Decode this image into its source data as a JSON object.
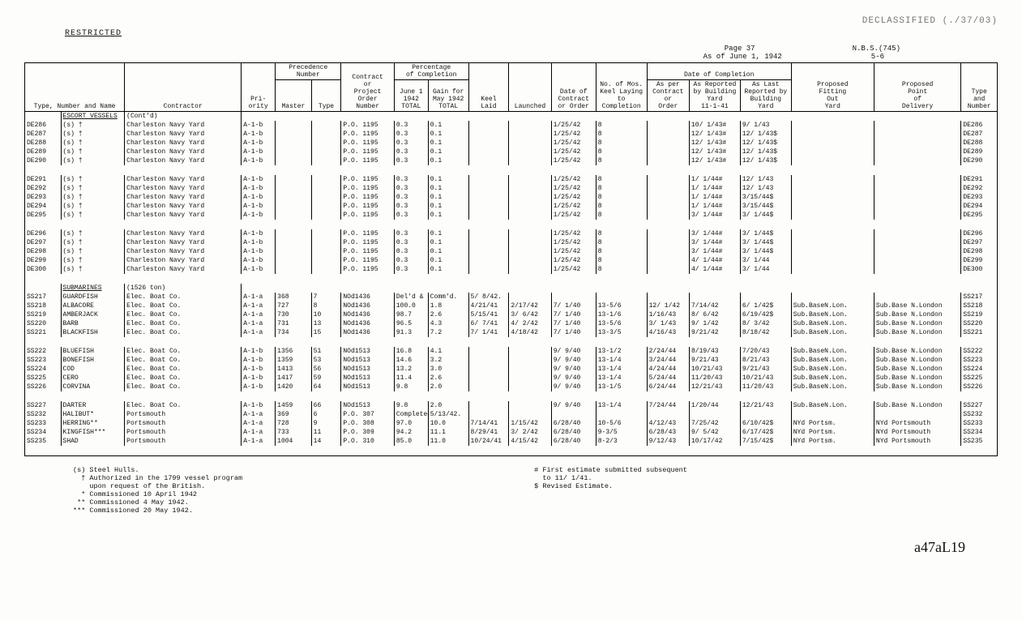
{
  "stamp": "DECLASSIFIED (./37/03)",
  "restricted": "RESTRICTED",
  "page": "Page 37",
  "doc": "N.B.S.(745)",
  "asof": "As of June 1, 1942",
  "ref": "5-6",
  "headers": {
    "type_no_name": "Type, Number and Name",
    "contractor": "Contractor",
    "priority": "Pri-\nority",
    "prec": "Precedence\nNumber",
    "master": "Master",
    "type": "Type",
    "contract_or": "Contract\nor\nProject\nOrder\nNumber",
    "pct": "Percentage\nof Completion",
    "june1": "June 1\n1942\nTOTAL",
    "gain": "Gain for\nMay 1942\nTOTAL",
    "keel": "Keel\nLaid",
    "launched": "Launched",
    "date_con": "Date of\nContract\nor Order",
    "mos_keel": "No. of Mos.\nKeel Laying\nto\nCompletion",
    "date_comp": "Date of Completion",
    "as_per": "As per\nContract\nor\nOrder",
    "as_rep": "As Reported\nby Building\nYard\n11-1-41",
    "as_last": "As Last\nReported by\nBuilding\nYard",
    "fitting": "Proposed\nFitting\nOut\nYard",
    "delivery": "Proposed\nPoint\nof\nDelivery",
    "type_num": "Type\nand\nNumber"
  },
  "sections": {
    "escort": "ESCORT VESSELS",
    "escort_cont": "(Cont'd)",
    "subs": "SUBMARINES",
    "subs_ton": "(1526 ton)"
  },
  "escort_rows": [
    {
      "id": "DE286",
      "n": "(s)",
      "m": "†",
      "con": "Charleston Navy Yard",
      "pri": "A-1-b",
      "po": "P.O. 1195",
      "j": "0.3",
      "g": "0.1",
      "doc": "1/25/42",
      "mos": "8",
      "arb": "10/ 1/43#",
      "alr": "9/ 1/43",
      "id2": "DE286"
    },
    {
      "id": "DE287",
      "n": "(s)",
      "m": "†",
      "con": "Charleston Navy Yard",
      "pri": "A-1-b",
      "po": "P.O. 1195",
      "j": "0.3",
      "g": "0.1",
      "doc": "1/25/42",
      "mos": "8",
      "arb": "12/ 1/43#",
      "alr": "12/ 1/43$",
      "id2": "DE287"
    },
    {
      "id": "DE288",
      "n": "(s)",
      "m": "†",
      "con": "Charleston Navy Yard",
      "pri": "A-1-b",
      "po": "P.O. 1195",
      "j": "0.3",
      "g": "0.1",
      "doc": "1/25/42",
      "mos": "8",
      "arb": "12/ 1/43#",
      "alr": "12/ 1/43$",
      "id2": "DE288"
    },
    {
      "id": "DE289",
      "n": "(s)",
      "m": "†",
      "con": "Charleston Navy Yard",
      "pri": "A-1-b",
      "po": "P.O. 1195",
      "j": "0.3",
      "g": "0.1",
      "doc": "1/25/42",
      "mos": "8",
      "arb": "12/ 1/43#",
      "alr": "12/ 1/43$",
      "id2": "DE289"
    },
    {
      "id": "DE290",
      "n": "(s)",
      "m": "†",
      "con": "Charleston Navy Yard",
      "pri": "A-1-b",
      "po": "P.O. 1195",
      "j": "0.3",
      "g": "0.1",
      "doc": "1/25/42",
      "mos": "8",
      "arb": "12/ 1/43#",
      "alr": "12/ 1/43$",
      "id2": "DE290"
    },
    {
      "spacer": true
    },
    {
      "id": "DE291",
      "n": "(s)",
      "m": "†",
      "con": "Charleston Navy Yard",
      "pri": "A-1-b",
      "po": "P.O. 1195",
      "j": "0.3",
      "g": "0.1",
      "doc": "1/25/42",
      "mos": "8",
      "arb": "1/ 1/44#",
      "alr": "12/ 1/43",
      "id2": "DE291"
    },
    {
      "id": "DE292",
      "n": "(s)",
      "m": "†",
      "con": "Charleston Navy Yard",
      "pri": "A-1-b",
      "po": "P.O. 1195",
      "j": "0.3",
      "g": "0.1",
      "doc": "1/25/42",
      "mos": "8",
      "arb": "1/ 1/44#",
      "alr": "12/ 1/43",
      "id2": "DE292"
    },
    {
      "id": "DE293",
      "n": "(s)",
      "m": "†",
      "con": "Charleston Navy Yard",
      "pri": "A-1-b",
      "po": "P.O. 1195",
      "j": "0.3",
      "g": "0.1",
      "doc": "1/25/42",
      "mos": "8",
      "arb": "1/ 1/44#",
      "alr": "3/15/44$",
      "id2": "DE293"
    },
    {
      "id": "DE294",
      "n": "(s)",
      "m": "†",
      "con": "Charleston Navy Yard",
      "pri": "A-1-b",
      "po": "P.O. 1195",
      "j": "0.3",
      "g": "0.1",
      "doc": "1/25/42",
      "mos": "8",
      "arb": "1/ 1/44#",
      "alr": "3/15/44$",
      "id2": "DE294"
    },
    {
      "id": "DE295",
      "n": "(s)",
      "m": "†",
      "con": "Charleston Navy Yard",
      "pri": "A-1-b",
      "po": "P.O. 1195",
      "j": "0.3",
      "g": "0.1",
      "doc": "1/25/42",
      "mos": "8",
      "arb": "3/ 1/44#",
      "alr": "3/ 1/44$",
      "id2": "DE295"
    },
    {
      "spacer": true
    },
    {
      "id": "DE296",
      "n": "(s)",
      "m": "†",
      "con": "Charleston Navy Yard",
      "pri": "A-1-b",
      "po": "P.O. 1195",
      "j": "0.3",
      "g": "0.1",
      "doc": "1/25/42",
      "mos": "8",
      "arb": "3/ 1/44#",
      "alr": "3/ 1/44$",
      "id2": "DE296"
    },
    {
      "id": "DE297",
      "n": "(s)",
      "m": "†",
      "con": "Charleston Navy Yard",
      "pri": "A-1-b",
      "po": "P.O. 1195",
      "j": "0.3",
      "g": "0.1",
      "doc": "1/25/42",
      "mos": "8",
      "arb": "3/ 1/44#",
      "alr": "3/ 1/44$",
      "id2": "DE297"
    },
    {
      "id": "DE298",
      "n": "(s)",
      "m": "†",
      "con": "Charleston Navy Yard",
      "pri": "A-1-b",
      "po": "P.O. 1195",
      "j": "0.3",
      "g": "0.1",
      "doc": "1/25/42",
      "mos": "8",
      "arb": "3/ 1/44#",
      "alr": "3/ 1/44$",
      "id2": "DE298"
    },
    {
      "id": "DE299",
      "n": "(s)",
      "m": "†",
      "con": "Charleston Navy Yard",
      "pri": "A-1-b",
      "po": "P.O. 1195",
      "j": "0.3",
      "g": "0.1",
      "doc": "1/25/42",
      "mos": "8",
      "arb": "4/ 1/44#",
      "alr": "3/ 1/44",
      "id2": "DE299"
    },
    {
      "id": "DE300",
      "n": "(s)",
      "m": "†",
      "con": "Charleston Navy Yard",
      "pri": "A-1-b",
      "po": "P.O. 1195",
      "j": "0.3",
      "g": "0.1",
      "doc": "1/25/42",
      "mos": "8",
      "arb": "4/ 1/44#",
      "alr": "3/ 1/44",
      "id2": "DE300"
    }
  ],
  "sub_rows": [
    {
      "id": "SS217",
      "n": "GUARDFISH",
      "con": "Elec. Boat Co.",
      "pri": "A-1-a",
      "mas": "368",
      "typ": "7",
      "po": "NOd1436",
      "j": "Del'd &",
      "g": "Comm'd.",
      "kl": "5/ 8/42.",
      "lau": "",
      "doc": "",
      "mos": "",
      "apc": "",
      "arb": "",
      "alr": "",
      "fit": "",
      "del": "",
      "id2": "SS217"
    },
    {
      "id": "SS218",
      "n": "ALBACORE",
      "con": "Elec. Boat Co.",
      "pri": "A-1-a",
      "mas": "727",
      "typ": "8",
      "po": "NOd1436",
      "j": "100.0",
      "g": "1.8",
      "kl": "4/21/41",
      "lau": "2/17/42",
      "doc": "7/ 1/40",
      "mos": "13-5/6",
      "apc": "12/ 1/42",
      "arb": "7/14/42",
      "alr": "6/ 1/42$",
      "fit": "Sub.BaseN.Lon.",
      "del": "Sub.Base N.London",
      "id2": "SS218"
    },
    {
      "id": "SS219",
      "n": "AMBERJACK",
      "con": "Elec. Boat Co.",
      "pri": "A-1-a",
      "mas": "730",
      "typ": "10",
      "po": "NOd1436",
      "j": "98.7",
      "g": "2.6",
      "kl": "5/15/41",
      "lau": "3/ 6/42",
      "doc": "7/ 1/40",
      "mos": "13-1/6",
      "apc": "1/16/43",
      "arb": "8/ 6/42",
      "alr": "6/19/42$",
      "fit": "Sub.BaseN.Lon.",
      "del": "Sub.Base N.London",
      "id2": "SS219"
    },
    {
      "id": "SS220",
      "n": "BARB",
      "con": "Elec. Boat Co.",
      "pri": "A-1-a",
      "mas": "731",
      "typ": "13",
      "po": "NOd1436",
      "j": "96.5",
      "g": "4.3",
      "kl": "6/ 7/41",
      "lau": "4/ 2/42",
      "doc": "7/ 1/40",
      "mos": "13-5/6",
      "apc": "3/ 1/43",
      "arb": "9/ 1/42",
      "alr": "8/ 3/42",
      "fit": "Sub.BaseN.Lon.",
      "del": "Sub.Base N.London",
      "id2": "SS220"
    },
    {
      "id": "SS221",
      "n": "BLACKFISH",
      "con": "Elec. Boat Co.",
      "pri": "A-1-a",
      "mas": "734",
      "typ": "15",
      "po": "NOd1436",
      "j": "91.3",
      "g": "7.2",
      "kl": "7/ 1/41",
      "lau": "4/18/42",
      "doc": "7/ 1/40",
      "mos": "13-3/5",
      "apc": "4/16/43",
      "arb": "9/21/42",
      "alr": "8/18/42",
      "fit": "Sub.BaseN.Lon.",
      "del": "Sub.Base N.London",
      "id2": "SS221"
    },
    {
      "spacer": true
    },
    {
      "id": "SS222",
      "n": "BLUEFISH",
      "con": "Elec. Boat Co.",
      "pri": "A-1-b",
      "mas": "1356",
      "typ": "51",
      "po": "NOd1513",
      "j": "16.8",
      "g": "4.1",
      "kl": "",
      "lau": "",
      "doc": "9/ 9/40",
      "mos": "13-1/2",
      "apc": "2/24/44",
      "arb": "8/19/43",
      "alr": "7/20/43",
      "fit": "Sub.BaseN.Lon.",
      "del": "Sub.Base N.London",
      "id2": "SS222"
    },
    {
      "id": "SS223",
      "n": "BONEFISH",
      "con": "Elec. Boat Co.",
      "pri": "A-1-b",
      "mas": "1359",
      "typ": "53",
      "po": "NOd1513",
      "j": "14.6",
      "g": "3.2",
      "kl": "",
      "lau": "",
      "doc": "9/ 9/40",
      "mos": "13-1/4",
      "apc": "3/24/44",
      "arb": "9/21/43",
      "alr": "8/21/43",
      "fit": "Sub.BaseN.Lon.",
      "del": "Sub.Base N.London",
      "id2": "SS223"
    },
    {
      "id": "SS224",
      "n": "COD",
      "con": "Elec. Boat Co.",
      "pri": "A-1-b",
      "mas": "1413",
      "typ": "56",
      "po": "NOd1513",
      "j": "13.2",
      "g": "3.0",
      "kl": "",
      "lau": "",
      "doc": "9/ 9/40",
      "mos": "13-1/4",
      "apc": "4/24/44",
      "arb": "10/21/43",
      "alr": "9/21/43",
      "fit": "Sub.BaseN.Lon.",
      "del": "Sub.Base N.London",
      "id2": "SS224"
    },
    {
      "id": "SS225",
      "n": "CERO",
      "con": "Elec. Boat Co.",
      "pri": "A-1-b",
      "mas": "1417",
      "typ": "59",
      "po": "NOd1513",
      "j": "11.4",
      "g": "2.6",
      "kl": "",
      "lau": "",
      "doc": "9/ 9/40",
      "mos": "13-1/4",
      "apc": "5/24/44",
      "arb": "11/20/43",
      "alr": "10/21/43",
      "fit": "Sub.BaseN.Lon.",
      "del": "Sub.Base N.London",
      "id2": "SS225"
    },
    {
      "id": "SS226",
      "n": "CORVINA",
      "con": "Elec. Boat Co.",
      "pri": "A-1-b",
      "mas": "1420",
      "typ": "64",
      "po": "NOd1513",
      "j": "9.8",
      "g": "2.0",
      "kl": "",
      "lau": "",
      "doc": "9/ 9/40",
      "mos": "13-1/5",
      "apc": "6/24/44",
      "arb": "12/21/43",
      "alr": "11/20/43",
      "fit": "Sub.BaseN.Lon.",
      "del": "Sub.Base N.London",
      "id2": "SS226"
    },
    {
      "spacer": true
    },
    {
      "id": "SS227",
      "n": "DARTER",
      "con": "Elec. Boat Co.",
      "pri": "A-1-b",
      "mas": "1459",
      "typ": "66",
      "po": "NOd1513",
      "j": "9.8",
      "g": "2.0",
      "kl": "",
      "lau": "",
      "doc": "9/ 9/40",
      "mos": "13-1/4",
      "apc": "7/24/44",
      "arb": "1/20/44",
      "alr": "12/21/43",
      "fit": "Sub.BaseN.Lon.",
      "del": "Sub.Base N.London",
      "id2": "SS227"
    },
    {
      "id": "SS232",
      "n": "HALIBUT*",
      "con": "Portsmouth",
      "pri": "A-1-a",
      "mas": "369",
      "typ": "6",
      "po": "P.O. 307",
      "j": "Completed",
      "g": "5/13/42.",
      "kl": "",
      "lau": "",
      "doc": "",
      "mos": "",
      "apc": "",
      "arb": "",
      "alr": "",
      "fit": "",
      "del": "",
      "id2": "SS232"
    },
    {
      "id": "SS233",
      "n": "HERRING**",
      "con": "Portsmouth",
      "pri": "A-1-a",
      "mas": "728",
      "typ": "9",
      "po": "P.O. 308",
      "j": "97.0",
      "g": "10.0",
      "kl": "7/14/41",
      "lau": "1/15/42",
      "doc": "6/28/40",
      "mos": "10-5/6",
      "apc": "4/12/43",
      "arb": "7/25/42",
      "alr": "6/10/42$",
      "fit": "NYd Portsm.",
      "del": "NYd Portsmouth",
      "id2": "SS233"
    },
    {
      "id": "SS234",
      "n": "KINGFISH***",
      "con": "Portsmouth",
      "pri": "A-1-a",
      "mas": "733",
      "typ": "11",
      "po": "P.O. 309",
      "j": "94.2",
      "g": "11.1",
      "kl": "8/29/41",
      "lau": "3/ 2/42",
      "doc": "6/28/40",
      "mos": "9-3/5",
      "apc": "6/28/43",
      "arb": "9/ 5/42",
      "alr": "6/17/42$",
      "fit": "NYd Portsm.",
      "del": "NYd Portsmouth",
      "id2": "SS234"
    },
    {
      "id": "SS235",
      "n": "SHAD",
      "con": "Portsmouth",
      "pri": "A-1-a",
      "mas": "1004",
      "typ": "14",
      "po": "P.O. 310",
      "j": "85.0",
      "g": "11.0",
      "kl": "10/24/41",
      "lau": "4/15/42",
      "doc": "6/28/40",
      "mos": "8-2/3",
      "apc": "9/12/43",
      "arb": "10/17/42",
      "alr": "7/15/42$",
      "fit": "NYd Portsm.",
      "del": "NYd Portsmouth",
      "id2": "SS235"
    }
  ],
  "footnotes_left": "(s) Steel Hulls.\n  † Authorized in the 1799 vessel program\n    upon request of the British.\n  * Commissioned 10 April 1942\n ** Commissioned 4 May 1942.\n*** Commissioned 20 May 1942.",
  "footnotes_right": "# First estimate submitted subsequent\n  to 11/ 1/41.\n$ Revised Estimate.",
  "docnum": "a47aL19"
}
